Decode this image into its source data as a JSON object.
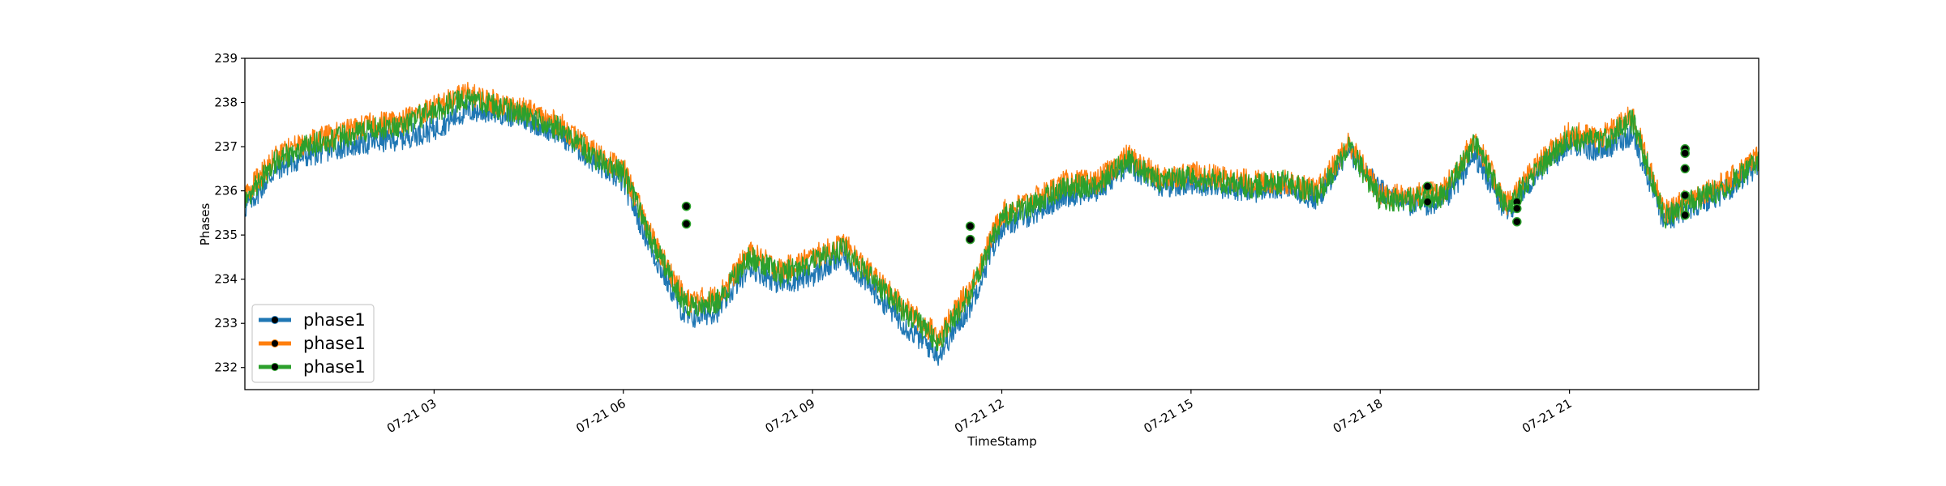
{
  "chart_data": {
    "type": "line",
    "title": "",
    "xlabel": "TimeStamp",
    "ylabel": "Phases",
    "ylim": [
      231.5,
      239
    ],
    "xlim": [
      "07-21 00:00",
      "07-21 24:00"
    ],
    "x_tick_labels": [
      {
        "x": "07-21 03:00",
        "label": "07-21 03"
      },
      {
        "x": "07-21 06:00",
        "label": "07-21 06"
      },
      {
        "x": "07-21 09:00",
        "label": "07-21 09"
      },
      {
        "x": "07-21 12:00",
        "label": "07-21 12"
      },
      {
        "x": "07-21 15:00",
        "label": "07-21 15"
      },
      {
        "x": "07-21 18:00",
        "label": "07-21 18"
      },
      {
        "x": "07-21 21:00",
        "label": "07-21 21"
      }
    ],
    "y_ticks": [
      232,
      233,
      234,
      235,
      236,
      237,
      238,
      239
    ],
    "grid": false,
    "legend_position": "lower-left",
    "x": [
      "07-21 00:00",
      "07-21 00:30",
      "07-21 01:00",
      "07-21 01:30",
      "07-21 02:00",
      "07-21 02:30",
      "07-21 03:00",
      "07-21 03:30",
      "07-21 04:00",
      "07-21 04:30",
      "07-21 05:00",
      "07-21 05:30",
      "07-21 06:00",
      "07-21 06:30",
      "07-21 07:00",
      "07-21 07:30",
      "07-21 08:00",
      "07-21 08:30",
      "07-21 09:00",
      "07-21 09:30",
      "07-21 10:00",
      "07-21 10:30",
      "07-21 11:00",
      "07-21 11:30",
      "07-21 12:00",
      "07-21 12:30",
      "07-21 13:00",
      "07-21 13:30",
      "07-21 14:00",
      "07-21 14:30",
      "07-21 15:00",
      "07-21 15:30",
      "07-21 16:00",
      "07-21 16:30",
      "07-21 17:00",
      "07-21 17:30",
      "07-21 18:00",
      "07-21 18:30",
      "07-21 19:00",
      "07-21 19:30",
      "07-21 20:00",
      "07-21 20:30",
      "07-21 21:00",
      "07-21 21:30",
      "07-21 22:00",
      "07-21 22:30",
      "07-21 23:00",
      "07-21 23:30",
      "07-21 24:00"
    ],
    "series": [
      {
        "name": "phase1",
        "color": "#1f77b4",
        "values": [
          235.6,
          236.5,
          236.8,
          237.0,
          237.1,
          237.2,
          237.4,
          237.8,
          237.8,
          237.6,
          237.3,
          236.7,
          236.2,
          234.5,
          233.1,
          233.3,
          234.3,
          233.9,
          234.1,
          234.5,
          233.7,
          232.9,
          232.3,
          233.4,
          235.2,
          235.5,
          235.9,
          236.0,
          236.6,
          236.1,
          236.2,
          236.1,
          236.0,
          236.1,
          235.8,
          236.9,
          236.0,
          235.7,
          235.7,
          236.8,
          235.5,
          236.4,
          237.1,
          236.9,
          237.3,
          235.3,
          235.7,
          236.0,
          236.6
        ]
      },
      {
        "name": "phase1",
        "color": "#ff7f0e",
        "values": [
          235.9,
          236.8,
          237.1,
          237.3,
          237.5,
          237.6,
          237.9,
          238.2,
          238.0,
          237.8,
          237.5,
          236.9,
          236.5,
          234.8,
          233.5,
          233.6,
          234.6,
          234.2,
          234.5,
          234.8,
          234.0,
          233.3,
          232.7,
          233.8,
          235.5,
          235.8,
          236.2,
          236.2,
          236.8,
          236.3,
          236.4,
          236.3,
          236.2,
          236.2,
          236.0,
          237.1,
          235.9,
          235.9,
          236.0,
          237.2,
          235.7,
          236.6,
          237.3,
          237.2,
          237.7,
          235.5,
          235.9,
          236.2,
          236.8
        ]
      },
      {
        "name": "phase1",
        "color": "#2ca02c",
        "values": [
          235.8,
          236.7,
          237.0,
          237.2,
          237.4,
          237.5,
          237.8,
          238.1,
          237.9,
          237.7,
          237.4,
          236.8,
          236.4,
          234.7,
          233.4,
          233.5,
          234.5,
          234.1,
          234.4,
          234.7,
          233.9,
          233.2,
          232.6,
          233.7,
          235.4,
          235.7,
          236.1,
          236.1,
          236.7,
          236.2,
          236.3,
          236.2,
          236.1,
          236.2,
          235.9,
          237.0,
          235.8,
          235.8,
          235.9,
          237.1,
          235.6,
          236.5,
          237.2,
          237.1,
          237.6,
          235.4,
          235.8,
          236.1,
          236.7
        ]
      }
    ],
    "markers": [
      {
        "x": "07-21 07:00",
        "y": 235.65
      },
      {
        "x": "07-21 07:00",
        "y": 235.25
      },
      {
        "x": "07-21 11:30",
        "y": 235.2
      },
      {
        "x": "07-21 11:30",
        "y": 234.9
      },
      {
        "x": "07-21 18:45",
        "y": 236.1
      },
      {
        "x": "07-21 18:45",
        "y": 235.75
      },
      {
        "x": "07-21 20:10",
        "y": 235.75
      },
      {
        "x": "07-21 20:10",
        "y": 235.6
      },
      {
        "x": "07-21 20:10",
        "y": 235.3
      },
      {
        "x": "07-21 22:50",
        "y": 236.95
      },
      {
        "x": "07-21 22:50",
        "y": 236.85
      },
      {
        "x": "07-21 22:50",
        "y": 236.5
      },
      {
        "x": "07-21 22:50",
        "y": 235.9
      },
      {
        "x": "07-21 22:50",
        "y": 235.45
      }
    ]
  }
}
